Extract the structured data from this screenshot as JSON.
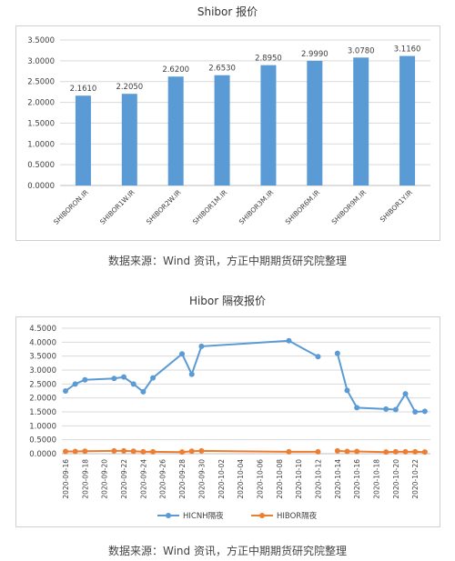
{
  "chart_data": [
    {
      "type": "bar",
      "title": "Shibor 报价",
      "categories": [
        "SHIBORON.IR",
        "SHIBOR1W.IR",
        "SHIBOR2W.IR",
        "SHIBOR1M.IR",
        "SHIBOR3M.IR",
        "SHIBOR6M.IR",
        "SHIBOR9M.IR",
        "SHIBOR1Y.IR"
      ],
      "values": [
        2.161,
        2.205,
        2.62,
        2.653,
        2.895,
        2.999,
        3.078,
        3.116
      ],
      "value_labels": [
        "2.1610",
        "2.2050",
        "2.6200",
        "2.6530",
        "2.8950",
        "2.9990",
        "3.0780",
        "3.1160"
      ],
      "ylim": [
        0,
        3.5
      ],
      "yticks": [
        "0.0000",
        "0.5000",
        "1.0000",
        "1.5000",
        "2.0000",
        "2.5000",
        "3.0000",
        "3.5000"
      ],
      "grid": true,
      "color": "#5b9bd5"
    },
    {
      "type": "line",
      "title": "Hibor 隔夜报价",
      "x_labels": [
        "2020-09-16",
        "2020-09-18",
        "2020-09-20",
        "2020-09-22",
        "2020-09-24",
        "2020-09-26",
        "2020-09-28",
        "2020-09-30",
        "2020-10-02",
        "2020-10-04",
        "2020-10-06",
        "2020-10-08",
        "2020-10-10",
        "2020-10-12",
        "2020-10-14",
        "2020-10-16",
        "2020-10-18",
        "2020-10-20",
        "2020-10-22"
      ],
      "x_start": "2020-09-16",
      "ylim": [
        0,
        4.5
      ],
      "yticks": [
        "0.0000",
        "0.5000",
        "1.0000",
        "1.5000",
        "2.0000",
        "2.5000",
        "3.0000",
        "3.5000",
        "4.0000",
        "4.5000"
      ],
      "grid": true,
      "legend_position": "bottom",
      "series": [
        {
          "name": "HICNH隔夜",
          "color": "#5b9bd5",
          "segments": [
            [
              [
                "2020-09-16",
                2.25
              ],
              [
                "2020-09-17",
                2.5
              ],
              [
                "2020-09-18",
                2.65
              ],
              [
                "2020-09-21",
                2.7
              ],
              [
                "2020-09-22",
                2.75
              ],
              [
                "2020-09-23",
                2.5
              ],
              [
                "2020-09-24",
                2.22
              ],
              [
                "2020-09-25",
                2.72
              ],
              [
                "2020-09-28",
                3.58
              ],
              [
                "2020-09-29",
                2.85
              ],
              [
                "2020-09-30",
                3.85
              ],
              [
                "2020-10-09",
                4.05
              ],
              [
                "2020-10-12",
                3.48
              ]
            ],
            [
              [
                "2020-10-14",
                3.6
              ],
              [
                "2020-10-15",
                2.27
              ],
              [
                "2020-10-16",
                1.65
              ],
              [
                "2020-10-19",
                1.6
              ],
              [
                "2020-10-20",
                1.58
              ],
              [
                "2020-10-21",
                2.15
              ],
              [
                "2020-10-22",
                1.5
              ],
              [
                "2020-10-23",
                1.52
              ]
            ]
          ]
        },
        {
          "name": "HIBOR隔夜",
          "color": "#ed7d31",
          "segments": [
            [
              [
                "2020-09-16",
                0.08
              ],
              [
                "2020-09-17",
                0.08
              ],
              [
                "2020-09-18",
                0.09
              ],
              [
                "2020-09-21",
                0.1
              ],
              [
                "2020-09-22",
                0.1
              ],
              [
                "2020-09-23",
                0.09
              ],
              [
                "2020-09-24",
                0.07
              ],
              [
                "2020-09-25",
                0.07
              ],
              [
                "2020-09-28",
                0.06
              ],
              [
                "2020-09-29",
                0.09
              ],
              [
                "2020-09-30",
                0.1
              ],
              [
                "2020-10-09",
                0.07
              ],
              [
                "2020-10-12",
                0.07
              ]
            ],
            [
              [
                "2020-10-14",
                0.1
              ],
              [
                "2020-10-15",
                0.08
              ],
              [
                "2020-10-16",
                0.08
              ],
              [
                "2020-10-19",
                0.06
              ],
              [
                "2020-10-20",
                0.07
              ],
              [
                "2020-10-21",
                0.07
              ],
              [
                "2020-10-22",
                0.07
              ],
              [
                "2020-10-23",
                0.06
              ]
            ]
          ]
        }
      ]
    }
  ],
  "sources": [
    "数据来源：Wind 资讯，方正中期期货研究院整理",
    "数据来源：Wind 资讯，方正中期期货研究院整理"
  ]
}
